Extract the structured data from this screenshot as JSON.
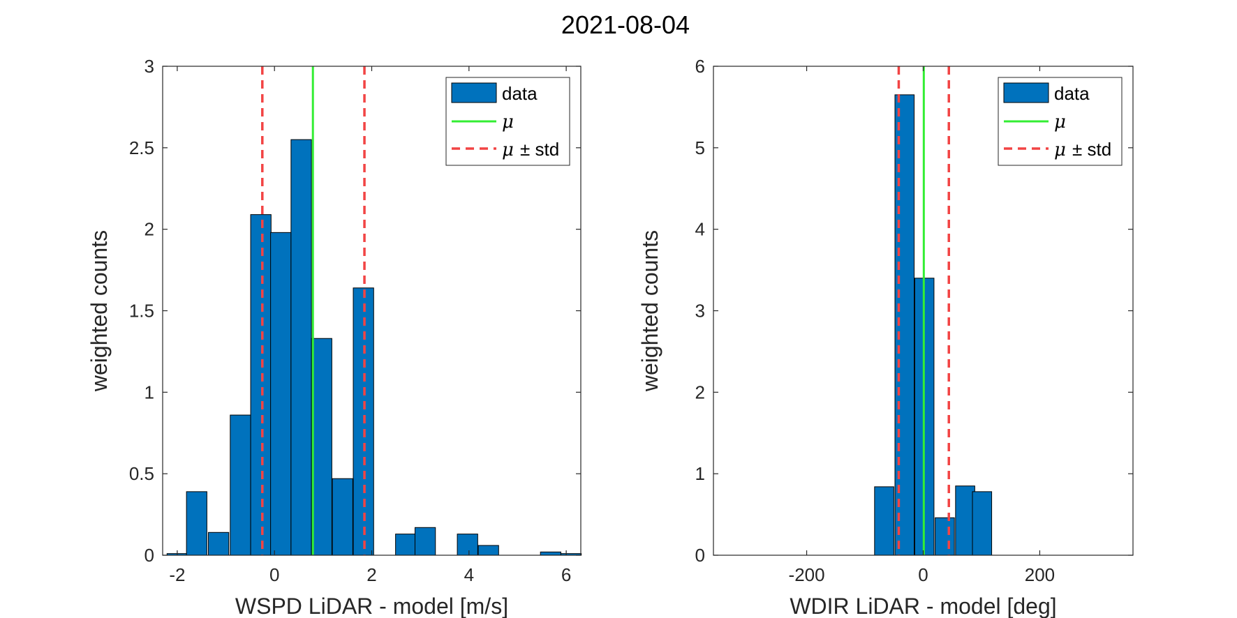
{
  "title": "2021-08-04",
  "chart_data": [
    {
      "type": "bar",
      "xlabel": "WSPD LiDAR - model [m/s]",
      "ylabel": "weighted counts",
      "xlim": [
        -2.3,
        6.3
      ],
      "ylim": [
        0,
        3
      ],
      "xticks": [
        -2,
        0,
        2,
        4,
        6
      ],
      "xtick_labels": [
        "-2",
        "0",
        "2",
        "4",
        "6"
      ],
      "yticks": [
        0,
        0.5,
        1,
        1.5,
        2,
        2.5,
        3
      ],
      "ytick_labels": [
        "0",
        "0.5",
        "1",
        "1.5",
        "2",
        "2.5",
        "3"
      ],
      "bin_width": 0.42,
      "x": [
        -2.0,
        -1.6,
        -1.15,
        -0.7,
        -0.28,
        0.13,
        0.55,
        0.97,
        1.4,
        1.83,
        2.25,
        2.7,
        3.1,
        3.55,
        3.97,
        4.4,
        4.82,
        5.25,
        5.68,
        6.1
      ],
      "values": [
        0.01,
        0.39,
        0.14,
        0.86,
        2.09,
        1.98,
        2.55,
        1.33,
        0.47,
        1.64,
        0.0,
        0.13,
        0.17,
        0.0,
        0.13,
        0.06,
        0.0,
        0.0,
        0.02,
        0.01
      ],
      "mu": 0.79,
      "mu_minus_std": -0.25,
      "mu_plus_std": 1.85,
      "legend": {
        "position": "top-right",
        "entries": [
          {
            "label": "data"
          },
          {
            "label": "μ"
          },
          {
            "label": "μ",
            "suffix": "± std"
          }
        ]
      },
      "grid": false
    },
    {
      "type": "bar",
      "xlabel": "WDIR LiDAR - model [deg]",
      "ylabel": "weighted counts",
      "xlim": [
        -360,
        360
      ],
      "ylim": [
        0,
        6
      ],
      "xticks": [
        -200,
        0,
        200
      ],
      "xtick_labels": [
        "-200",
        "0",
        "200"
      ],
      "yticks": [
        0,
        1,
        2,
        3,
        4,
        5,
        6
      ],
      "ytick_labels": [
        "0",
        "1",
        "2",
        "3",
        "4",
        "5",
        "6"
      ],
      "bin_width": 33,
      "x": [
        -67,
        -32,
        2,
        37,
        72
      ],
      "values": [
        0.84,
        5.65,
        3.4,
        0.46,
        0.85
      ],
      "extra_x": [
        101
      ],
      "extra_values": [
        0.78
      ],
      "mu": 1,
      "mu_minus_std": -42,
      "mu_plus_std": 44,
      "legend": {
        "position": "top-right",
        "entries": [
          {
            "label": "data"
          },
          {
            "label": "μ"
          },
          {
            "label": "μ",
            "suffix": "± std"
          }
        ]
      },
      "grid": false
    }
  ],
  "colors": {
    "bar_fill": "#0072BD",
    "bar_edge": "#000000",
    "mu_line": "#33EE33",
    "std_line": "#F24444",
    "axis": "#262626"
  }
}
